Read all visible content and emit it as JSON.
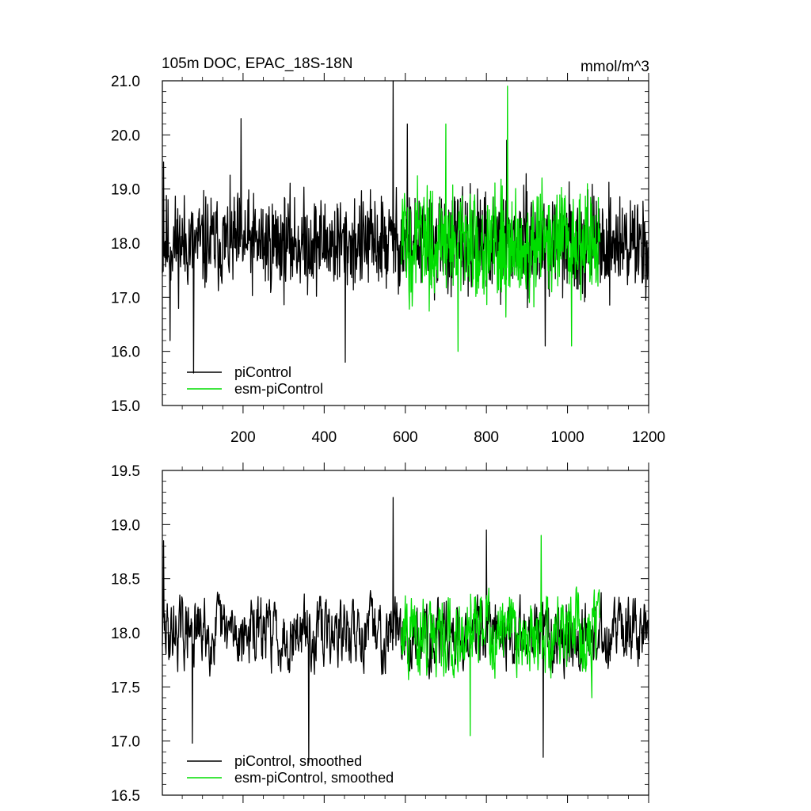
{
  "chart_data": [
    {
      "type": "line",
      "title": "105m DOC, EPAC_18S-18N",
      "units": "mmol/m^3",
      "xlabel": "",
      "ylabel": "",
      "xlim": [
        1,
        1200
      ],
      "ylim": [
        15.0,
        21.0
      ],
      "x_ticks": [
        200,
        400,
        600,
        800,
        1000,
        1200
      ],
      "x_tick_labels": [
        "200",
        "400",
        "600",
        "800",
        "1000",
        "1200"
      ],
      "y_ticks": [
        15.0,
        16.0,
        17.0,
        18.0,
        19.0,
        20.0,
        21.0
      ],
      "y_tick_labels": [
        "15.0",
        "16.0",
        "17.0",
        "18.0",
        "19.0",
        "20.0",
        "21.0"
      ],
      "grid": false,
      "legend_position": "bottom-left",
      "series": [
        {
          "name": "piControl",
          "color": "#000000",
          "x_range": [
            1,
            1200
          ],
          "mean": 18.0,
          "spread": 0.55,
          "smoothed": false,
          "peaks": [
            [
              4,
              19.5
            ],
            [
              20,
              16.2
            ],
            [
              78,
              15.6
            ],
            [
              195,
              20.3
            ],
            [
              452,
              15.8
            ],
            [
              570,
              21.0
            ],
            [
              605,
              20.2
            ],
            [
              850,
              19.9
            ],
            [
              945,
              16.1
            ]
          ]
        },
        {
          "name": "esm-piControl",
          "color": "#00dd00",
          "x_range": [
            590,
            1080
          ],
          "mean": 18.0,
          "spread": 0.65,
          "smoothed": false,
          "peaks": [
            [
              700,
              20.2
            ],
            [
              730,
              16.0
            ],
            [
              852,
              20.9
            ],
            [
              1010,
              16.1
            ]
          ]
        }
      ]
    },
    {
      "type": "line",
      "title": "",
      "xlabel": "",
      "ylabel": "",
      "xlim": [
        1,
        1200
      ],
      "ylim": [
        16.5,
        19.5
      ],
      "x_ticks": [
        200,
        400,
        600,
        800,
        1000,
        1200
      ],
      "x_tick_labels": [],
      "y_ticks": [
        16.5,
        17.0,
        17.5,
        18.0,
        18.5,
        19.0,
        19.5
      ],
      "y_tick_labels": [
        "16.5",
        "17.0",
        "17.5",
        "18.0",
        "18.5",
        "19.0",
        "19.5"
      ],
      "grid": false,
      "legend_position": "bottom-left",
      "series": [
        {
          "name": "piControl, smoothed",
          "color": "#000000",
          "x_range": [
            1,
            1200
          ],
          "mean": 18.0,
          "spread": 0.33,
          "smoothed": true,
          "peaks": [
            [
              4,
              18.85
            ],
            [
              75,
              16.98
            ],
            [
              570,
              19.25
            ],
            [
              362,
              16.8
            ],
            [
              940,
              16.85
            ],
            [
              800,
              18.95
            ]
          ]
        },
        {
          "name": "esm-piControl, smoothed",
          "color": "#00dd00",
          "x_range": [
            590,
            1080
          ],
          "mean": 18.0,
          "spread": 0.38,
          "smoothed": true,
          "peaks": [
            [
              760,
              17.05
            ],
            [
              935,
              18.9
            ],
            [
              1060,
              17.4
            ]
          ]
        }
      ]
    }
  ]
}
